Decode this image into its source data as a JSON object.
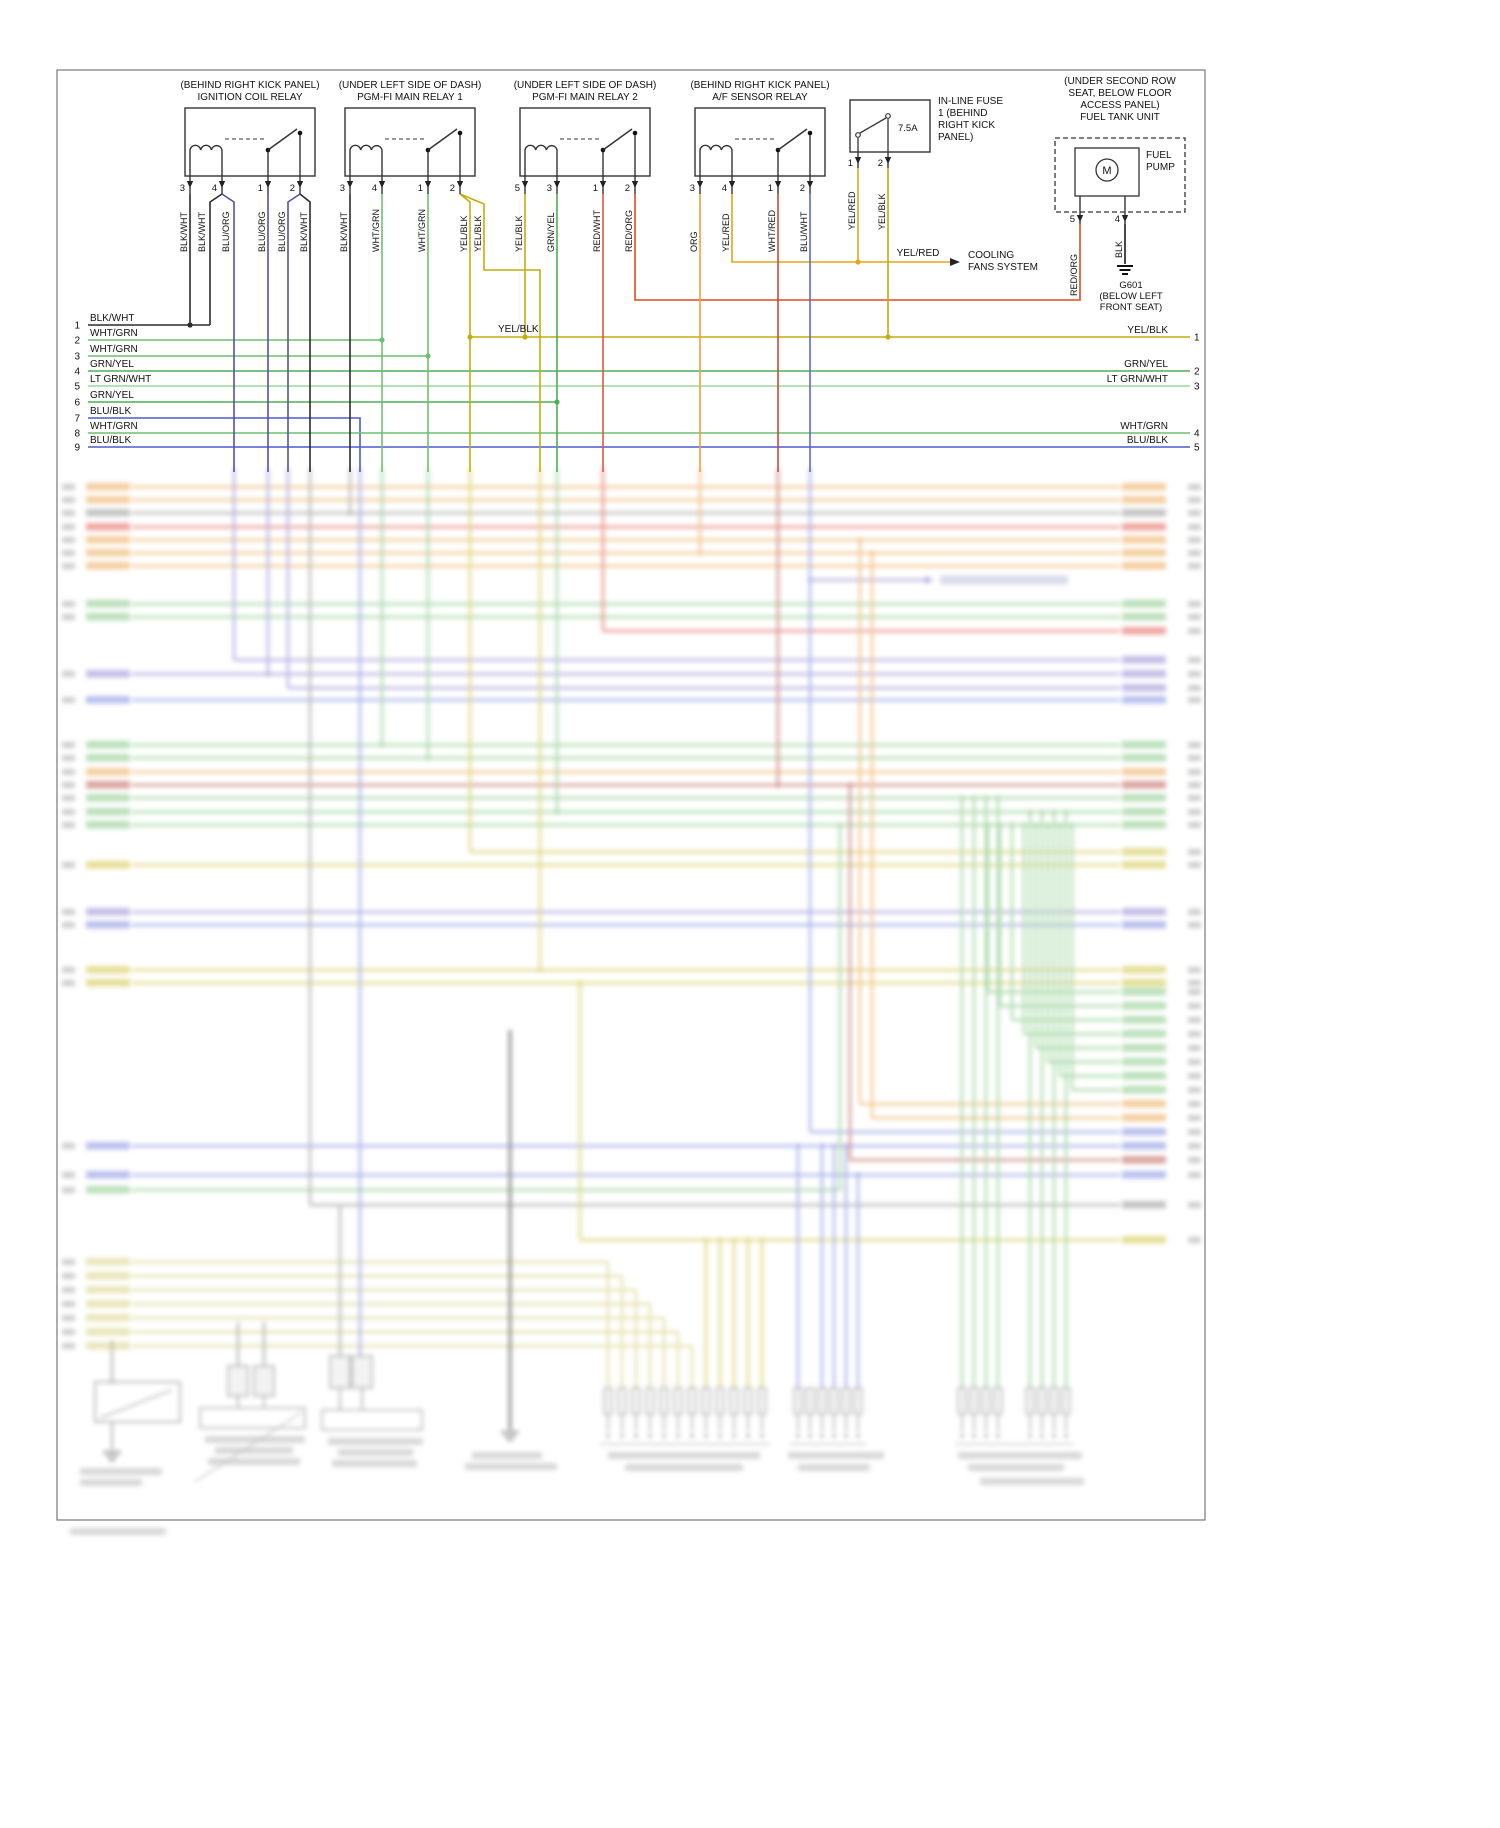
{
  "diagram": {
    "relays": [
      {
        "location": "(BEHIND RIGHT KICK PANEL)",
        "name": "IGNITION COIL RELAY",
        "pins": [
          "3",
          "4",
          "1",
          "2"
        ],
        "wires": [
          "BLK/WHT",
          "BLK/WHT",
          "BLU/ORG",
          "BLU/ORG",
          "BLU/ORG",
          "BLK/WHT"
        ]
      },
      {
        "location": "(UNDER LEFT SIDE OF DASH)",
        "name": "PGM-FI MAIN RELAY 1",
        "pins": [
          "3",
          "4",
          "1",
          "2"
        ],
        "wires": [
          "BLK/WHT",
          "WHT/GRN",
          "WHT/GRN",
          "YEL/BLK",
          "YEL/BLK"
        ]
      },
      {
        "location": "(UNDER LEFT SIDE OF DASH)",
        "name": "PGM-FI MAIN RELAY 2",
        "pins": [
          "5",
          "3",
          "1",
          "2"
        ],
        "wires": [
          "YEL/BLK",
          "GRN/YEL",
          "RED/WHT",
          "RED/ORG"
        ]
      },
      {
        "location": "(BEHIND RIGHT KICK PANEL)",
        "name": "A/F SENSOR RELAY",
        "pins": [
          "3",
          "4",
          "1",
          "2"
        ],
        "wires": [
          "ORG",
          "YEL/RED",
          "WHT/RED",
          "BLU/WHT"
        ]
      }
    ],
    "fuse": {
      "label_lines": [
        "IN-LINE FUSE",
        "1 (BEHIND",
        "RIGHT KICK",
        "PANEL)"
      ],
      "rating": "7.5A",
      "pins": [
        "1",
        "2"
      ],
      "wires": [
        "YEL/RED",
        "YEL/BLK"
      ]
    },
    "fuel_tank": {
      "location_lines": [
        "(UNDER SECOND ROW",
        "SEAT, BELOW FLOOR",
        "ACCESS PANEL)",
        "FUEL TANK UNIT"
      ],
      "pump_lines": [
        "FUEL",
        "PUMP"
      ],
      "motor": "M",
      "pins": [
        "5",
        "4"
      ],
      "wires": [
        "RED/ORG",
        "BLK"
      ],
      "ground_lines": [
        "G601",
        "(BELOW LEFT",
        "FRONT SEAT)"
      ]
    },
    "cooling": {
      "wire": "YEL/RED",
      "dest_lines": [
        "COOLING",
        "FANS SYSTEM"
      ]
    },
    "mid_label": "YEL/BLK",
    "left_wires": [
      {
        "n": "1",
        "label": "BLK/WHT"
      },
      {
        "n": "2",
        "label": "WHT/GRN"
      },
      {
        "n": "3",
        "label": "WHT/GRN"
      },
      {
        "n": "4",
        "label": "GRN/YEL"
      },
      {
        "n": "5",
        "label": "LT GRN/WHT"
      },
      {
        "n": "6",
        "label": "GRN/YEL"
      },
      {
        "n": "7",
        "label": "BLU/BLK"
      },
      {
        "n": "8",
        "label": "WHT/GRN"
      },
      {
        "n": "9",
        "label": "BLU/BLK"
      }
    ],
    "right_wires": [
      {
        "n": "1",
        "label": "YEL/BLK"
      },
      {
        "n": "2",
        "label": "GRN/YEL"
      },
      {
        "n": "3",
        "label": "LT GRN/WHT"
      },
      {
        "n": "4",
        "label": "WHT/GRN"
      },
      {
        "n": "5",
        "label": "BLU/BLK"
      }
    ],
    "palette": {
      "BLK": "#1a1a1a",
      "BLK_WHT": "#2b2b2b",
      "WHT_GRN": "#6fbf6f",
      "GRN_YEL": "#4fae57",
      "LT_GRN_WHT": "#9ad89a",
      "BLU_ORG": "#584fa8",
      "BLU_BLK": "#4a5ad0",
      "BLU_WHT": "#5b6ad8",
      "YEL_BLK": "#c2ae0a",
      "YEL_RED": "#e3a51c",
      "RED_ORG": "#e04a1f",
      "RED_WHT": "#df5747",
      "WHT_RED": "#c84a3c",
      "ORG": "#efa236"
    }
  }
}
